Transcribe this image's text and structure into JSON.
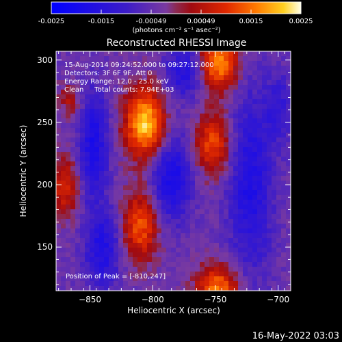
{
  "colorbar": {
    "ticks": [
      "-0.0025",
      "-0.0015",
      "-0.00049",
      "0.00049",
      "0.0015",
      "0.0025"
    ],
    "unit_label": "(photons cm⁻² s⁻¹ asec⁻²)"
  },
  "chart_data": {
    "type": "heatmap",
    "title": "Reconstructed RHESSI Image",
    "xlabel": "Heliocentric X (arcsec)",
    "ylabel": "Heliocentric Y (arcsec)",
    "xlim": [
      -877,
      -690
    ],
    "ylim": [
      115,
      307
    ],
    "xticks": [
      -850,
      -800,
      -750,
      -700
    ],
    "yticks": [
      150,
      200,
      250,
      300
    ],
    "clim": [
      -0.0025,
      0.0025
    ],
    "peak": [
      -810,
      247
    ],
    "sources": [
      {
        "x": -806,
        "y": 249,
        "sx": 11,
        "sy": 19,
        "amp": 0.0026
      },
      {
        "x": -747,
        "y": 298,
        "sx": 10,
        "sy": 15,
        "amp": 0.0022
      },
      {
        "x": -752,
        "y": 233,
        "sx": 10,
        "sy": 17,
        "amp": 0.0016
      },
      {
        "x": -810,
        "y": 167,
        "sx": 10,
        "sy": 19,
        "amp": 0.0017
      },
      {
        "x": -870,
        "y": 198,
        "sx": 8,
        "sy": 17,
        "amp": 0.0012
      },
      {
        "x": -748,
        "y": 115,
        "sx": 12,
        "sy": 14,
        "amp": 0.002
      },
      {
        "x": -866,
        "y": 268,
        "sx": 6,
        "sy": 9,
        "amp": 0.0008
      },
      {
        "x": -847,
        "y": 232,
        "sx": 8,
        "sy": 30,
        "amp": -0.0014
      },
      {
        "x": -785,
        "y": 205,
        "sx": 11,
        "sy": 24,
        "amp": -0.0015
      },
      {
        "x": -722,
        "y": 200,
        "sx": 12,
        "sy": 50,
        "amp": -0.0013
      },
      {
        "x": -840,
        "y": 148,
        "sx": 10,
        "sy": 22,
        "amp": -0.0013
      },
      {
        "x": -775,
        "y": 290,
        "sx": 10,
        "sy": 14,
        "amp": -0.0012
      },
      {
        "x": -700,
        "y": 262,
        "sx": 8,
        "sy": 20,
        "amp": -0.0008
      }
    ],
    "annotations": [
      "15-Aug-2014 09:24:52.000 to 09:27:12.000",
      "Detectors: 3F 6F 9F, Att 0",
      "Energy Range: 12.0 - 25.0 keV",
      "Clean     Total counts: 7.94E+03"
    ],
    "peak_label": "Position of Peak = [-810,247]"
  },
  "footer": {
    "timestamp": "16-May-2022 03:03"
  }
}
